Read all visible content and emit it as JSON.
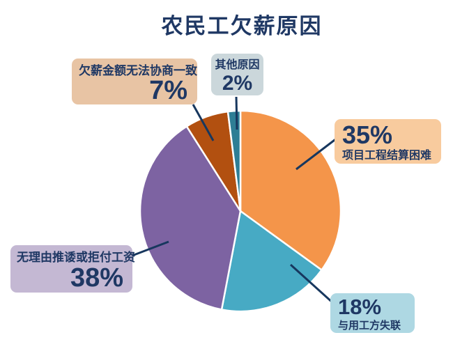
{
  "page": {
    "title": "农民工欠薪原因"
  },
  "chart_data": {
    "type": "pie",
    "title": "农民工欠薪原因",
    "direction": "clockwise",
    "start_angle_deg": 0,
    "total": 100,
    "legend_position": "none",
    "labels_style": "external-callouts-with-leader-lines",
    "background": "#FFFFFF",
    "text_color": "#1F3864",
    "leader_line_color": "#17375E",
    "slice_gap_color": "#FFFFFF",
    "slices": [
      {
        "label": "项目工程结算困难",
        "pct_label": "35%",
        "value": 35,
        "color": "#F4954A",
        "callout_bg": "#F8CB9E"
      },
      {
        "label": "与用工方失联",
        "pct_label": "18%",
        "value": 18,
        "color": "#47AAC4",
        "callout_bg": "#AED8E3"
      },
      {
        "label": "无理由推诿或拒付工资",
        "pct_label": "38%",
        "value": 38,
        "color": "#7D63A2",
        "callout_bg": "#C4B8D3"
      },
      {
        "label": "欠薪金额无法协商一致",
        "pct_label": "7%",
        "value": 7,
        "color": "#B25010",
        "callout_bg": "#E8C4A4"
      },
      {
        "label": "其他原因",
        "pct_label": "2%",
        "value": 2,
        "color": "#2E7E95",
        "callout_bg": "#CBD7DB"
      }
    ]
  }
}
